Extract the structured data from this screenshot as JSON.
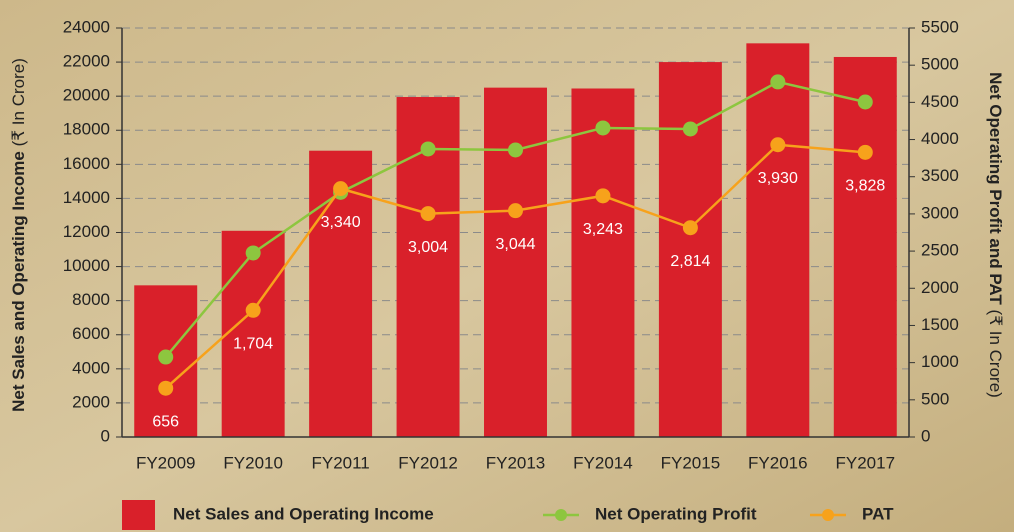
{
  "chart_data": {
    "type": "bar_line",
    "categories": [
      "FY2009",
      "FY2010",
      "FY2011",
      "FY2012",
      "FY2013",
      "FY2014",
      "FY2015",
      "FY2016",
      "FY2017"
    ],
    "y_label": "Net Sales and Operating Income",
    "y_unit": "(₹ In Crore)",
    "y2_label": "Net Operating Profit and PAT",
    "y2_unit": "(₹ In Crore)",
    "ylim": [
      0,
      24000
    ],
    "yticks": [
      0,
      2000,
      4000,
      6000,
      8000,
      10000,
      12000,
      14000,
      16000,
      18000,
      20000,
      22000,
      24000
    ],
    "y2lim": [
      0,
      5500
    ],
    "y2ticks": [
      0,
      500,
      1000,
      1500,
      2000,
      2500,
      3000,
      3500,
      4000,
      4500,
      5000,
      5500
    ],
    "grid": true,
    "legend": "bottom",
    "series": [
      {
        "name": "Net Sales and Operating Income",
        "type": "bar",
        "color": "#d9202a",
        "axis": "y",
        "values": [
          8900,
          12100,
          16800,
          19950,
          20500,
          20450,
          22000,
          23100,
          22300
        ]
      },
      {
        "name": "Net Operating Profit",
        "type": "line",
        "color": "#8dc63f",
        "axis": "y2",
        "values": [
          1075,
          2475,
          3290,
          3873,
          3860,
          4156,
          4142,
          4775,
          4505
        ]
      },
      {
        "name": "PAT",
        "type": "line",
        "color": "#f7a21b",
        "axis": "y2",
        "values": [
          656,
          1704,
          3340,
          3004,
          3044,
          3243,
          2814,
          3930,
          3828
        ],
        "value_labels": [
          "656",
          "1,704",
          "3,340",
          "3,004",
          "3,044",
          "3,243",
          "2,814",
          "3,930",
          "3,828"
        ]
      }
    ]
  }
}
